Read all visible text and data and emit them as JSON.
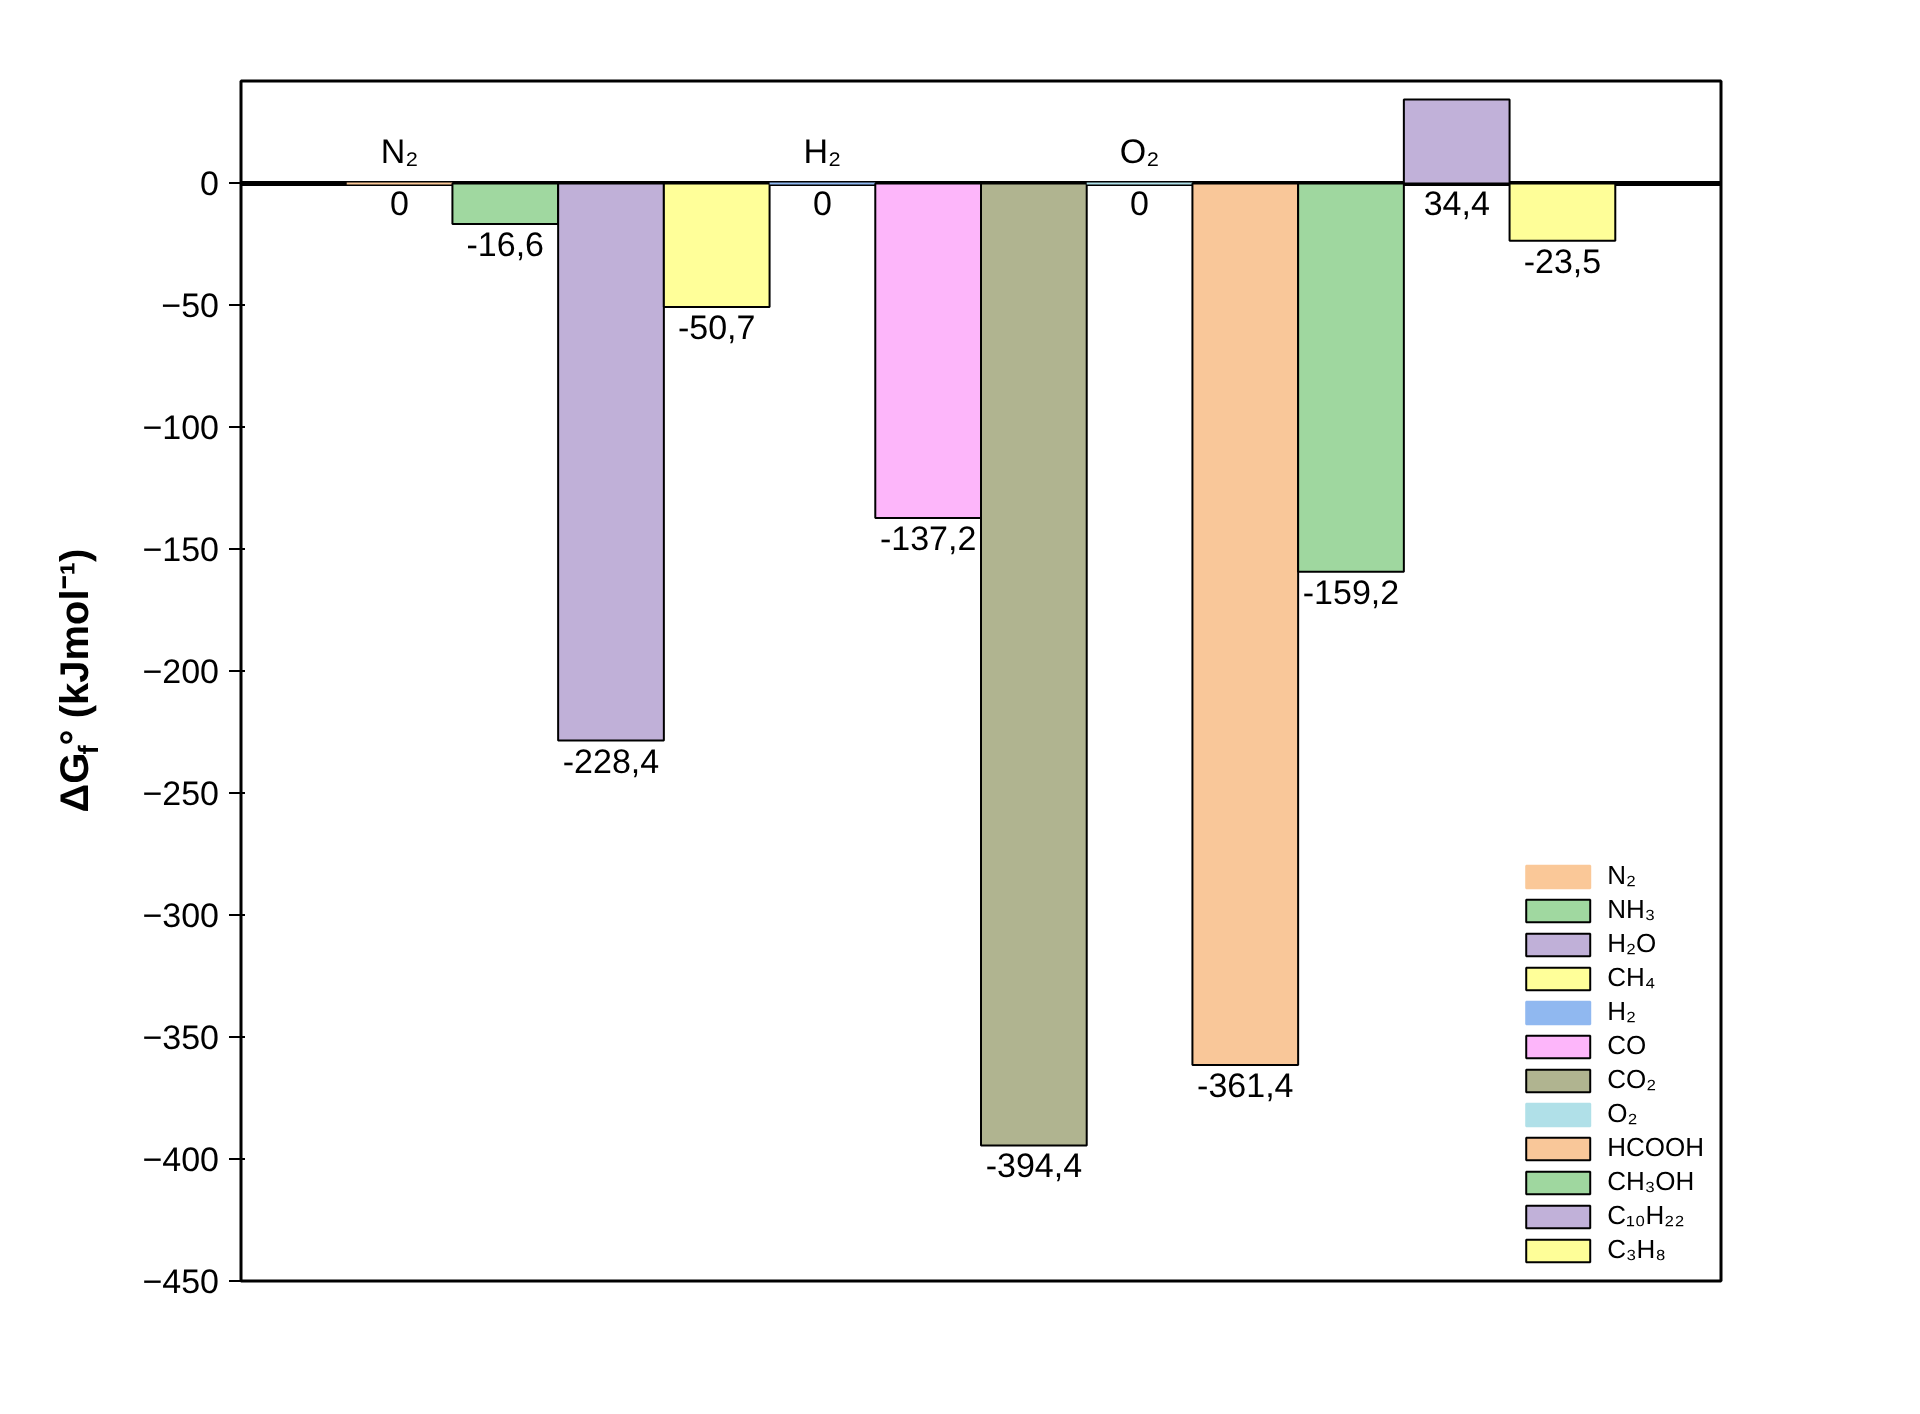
{
  "chart_data": {
    "type": "bar",
    "ylabel": "ΔG$_{f}$° (kJmol⁻¹)",
    "categories": [
      null,
      null,
      null,
      null,
      null,
      null,
      null,
      null,
      null,
      null,
      null,
      null,
      null,
      null
    ],
    "series": [
      {
        "name": "N₂",
        "color": "#fac898",
        "values": [
          null,
          0,
          null,
          null,
          null,
          null,
          null,
          null,
          null,
          null,
          null,
          null,
          null,
          null
        ]
      },
      {
        "name": "NH₃",
        "color": "#a0d8a0",
        "values": [
          null,
          null,
          -16.6,
          null,
          null,
          null,
          null,
          null,
          null,
          null,
          null,
          null,
          null,
          null
        ]
      },
      {
        "name": "H₂O",
        "color": "#c0b0d8",
        "values": [
          null,
          null,
          null,
          -228.4,
          null,
          null,
          null,
          null,
          null,
          null,
          null,
          null,
          null,
          null
        ]
      },
      {
        "name": "CH₄",
        "color": "#ffff99",
        "values": [
          null,
          null,
          null,
          null,
          -50.7,
          null,
          null,
          null,
          null,
          null,
          null,
          null,
          null,
          null
        ]
      },
      {
        "name": "H₂",
        "color": "#90b8f0",
        "values": [
          null,
          null,
          null,
          null,
          null,
          0,
          null,
          null,
          null,
          null,
          null,
          null,
          null,
          null
        ]
      },
      {
        "name": "CO",
        "color": "#fdb6fa",
        "values": [
          null,
          null,
          null,
          null,
          null,
          null,
          -137.2,
          null,
          null,
          null,
          null,
          null,
          null,
          null
        ]
      },
      {
        "name": "CO₂",
        "color": "#b0b490",
        "values": [
          null,
          null,
          null,
          null,
          null,
          null,
          null,
          -394.4,
          null,
          null,
          null,
          null,
          null,
          null
        ]
      },
      {
        "name": "O₂",
        "color": "#b0e0e8",
        "values": [
          null,
          null,
          null,
          null,
          null,
          null,
          null,
          null,
          0,
          null,
          null,
          null,
          null,
          null
        ]
      },
      {
        "name": "HCOOH",
        "color": "#f9c799",
        "values": [
          null,
          null,
          null,
          null,
          null,
          null,
          null,
          null,
          null,
          -361.4,
          null,
          null,
          null,
          null
        ]
      },
      {
        "name": "CH₃OH",
        "color": "#9fd79f",
        "values": [
          null,
          null,
          null,
          null,
          null,
          null,
          null,
          null,
          null,
          null,
          -159.2,
          null,
          null,
          null
        ]
      },
      {
        "name": "C₁₀H₂₂",
        "color": "#c1b1d9",
        "values": [
          null,
          null,
          null,
          null,
          null,
          null,
          null,
          null,
          null,
          null,
          null,
          34.4,
          null,
          null
        ]
      },
      {
        "name": "C₃H₈",
        "color": "#fefe98",
        "values": [
          null,
          null,
          null,
          null,
          null,
          null,
          null,
          null,
          null,
          null,
          null,
          null,
          -23.5,
          null
        ]
      }
    ],
    "value_labels": [
      null,
      "0",
      "-16,6",
      "-228,4",
      "-50,7",
      "0",
      "-137,2",
      "-394,4",
      "0",
      "-361,4",
      "-159,2",
      "34,4",
      "-23,5",
      null
    ],
    "annotations": [
      "N₂",
      "H₂",
      "O₂"
    ],
    "ylim": [
      -450,
      42
    ],
    "yticks": [
      -450,
      -400,
      -350,
      -300,
      -250,
      -200,
      -150,
      -100,
      -50,
      0
    ],
    "ref_lines": [
      {
        "axis": "y",
        "value": 0
      }
    ],
    "tick_labels": "y",
    "grid": false,
    "legend": "bottom right"
  }
}
